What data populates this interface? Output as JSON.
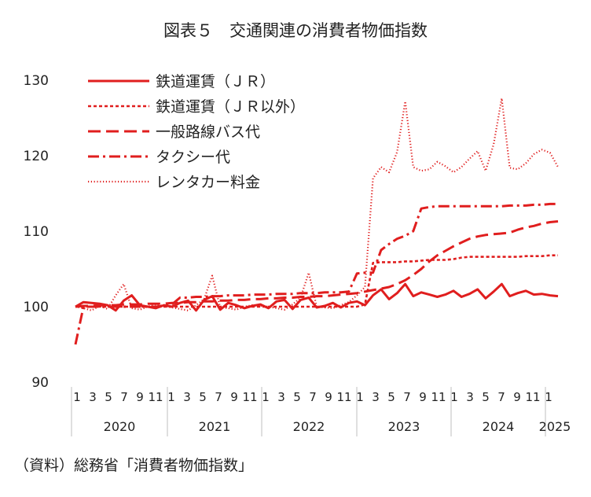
{
  "chart_data": {
    "type": "line",
    "title": "図表５　交通関連の消費者物価指数",
    "source_note": "（資料）総務省「消費者物価指数」",
    "ylim": [
      90,
      130
    ],
    "yticks": [
      "90",
      "100",
      "110",
      "120",
      "130"
    ],
    "grid": false,
    "legend_position": "top-left",
    "line_color": "#e01e1e",
    "x_month_labels": [
      "1",
      "3",
      "5",
      "7",
      "9",
      "11",
      "1",
      "3",
      "5",
      "7",
      "9",
      "11",
      "1",
      "3",
      "5",
      "7",
      "9",
      "11",
      "1",
      "3",
      "5",
      "7",
      "9",
      "11",
      "1",
      "3",
      "5",
      "7",
      "9",
      "11",
      "1"
    ],
    "x_year_labels": [
      "2020",
      "2021",
      "2022",
      "2023",
      "2024",
      "2025"
    ],
    "series": [
      {
        "name": "鉄道運賃（ＪＲ）",
        "style": "solid",
        "values": [
          100.0,
          100.6,
          100.5,
          100.4,
          100.2,
          99.5,
          100.8,
          101.5,
          100.2,
          100.0,
          99.8,
          100.2,
          100.0,
          100.5,
          100.8,
          99.5,
          100.9,
          101.4,
          99.6,
          100.5,
          100.2,
          99.8,
          100.1,
          100.3,
          99.8,
          100.7,
          100.9,
          99.7,
          100.9,
          101.2,
          99.9,
          100.1,
          100.5,
          99.9,
          100.5,
          100.7,
          100.2,
          101.5,
          102.3,
          101.0,
          101.8,
          103.0,
          101.4,
          101.9,
          101.6,
          101.3,
          101.6,
          102.1,
          101.3,
          101.7,
          102.3,
          101.1,
          102.0,
          103.0,
          101.4,
          101.8,
          102.1,
          101.6,
          101.7,
          101.5,
          101.4
        ]
      },
      {
        "name": "鉄道運賃（ＪＲ以外）",
        "style": "dashed",
        "values": [
          100.0,
          100.0,
          100.0,
          100.0,
          100.0,
          100.0,
          100.0,
          100.0,
          100.0,
          100.0,
          100.0,
          100.0,
          100.0,
          100.0,
          100.0,
          100.0,
          100.0,
          100.0,
          100.0,
          100.0,
          100.0,
          100.0,
          100.0,
          100.0,
          100.0,
          100.0,
          100.0,
          100.0,
          100.0,
          100.0,
          100.0,
          100.0,
          100.0,
          100.0,
          100.0,
          100.0,
          100.3,
          105.8,
          105.9,
          105.9,
          105.9,
          106.0,
          106.0,
          106.1,
          106.2,
          106.2,
          106.2,
          106.3,
          106.5,
          106.6,
          106.6,
          106.6,
          106.6,
          106.6,
          106.6,
          106.6,
          106.7,
          106.7,
          106.7,
          106.8,
          106.8
        ]
      },
      {
        "name": "一般路線バス代",
        "style": "longdash",
        "values": [
          100.0,
          100.1,
          100.1,
          100.2,
          100.2,
          100.2,
          100.3,
          100.3,
          100.3,
          100.4,
          100.4,
          100.4,
          100.5,
          100.5,
          100.6,
          100.6,
          100.7,
          100.7,
          100.8,
          100.8,
          100.9,
          100.9,
          101.0,
          101.0,
          101.1,
          101.1,
          101.2,
          101.2,
          101.3,
          101.3,
          101.4,
          101.4,
          101.5,
          101.6,
          101.7,
          101.8,
          102.0,
          102.2,
          102.4,
          102.6,
          103.0,
          103.5,
          104.2,
          105.0,
          106.0,
          106.8,
          107.4,
          108.0,
          108.5,
          109.0,
          109.3,
          109.5,
          109.6,
          109.7,
          109.8,
          110.2,
          110.5,
          110.7,
          111.0,
          111.2,
          111.3
        ]
      },
      {
        "name": "タクシー代",
        "style": "dashdot",
        "values": [
          95.0,
          100.0,
          100.0,
          100.0,
          100.0,
          100.0,
          100.0,
          100.0,
          100.0,
          100.0,
          100.0,
          100.1,
          100.3,
          101.2,
          101.2,
          101.3,
          101.3,
          101.4,
          101.4,
          101.5,
          101.5,
          101.5,
          101.6,
          101.6,
          101.6,
          101.7,
          101.7,
          101.7,
          101.8,
          101.8,
          101.8,
          101.9,
          101.9,
          101.9,
          102.0,
          104.4,
          104.5,
          104.5,
          107.5,
          108.3,
          109.0,
          109.4,
          110.0,
          113.0,
          113.2,
          113.3,
          113.3,
          113.3,
          113.3,
          113.3,
          113.3,
          113.3,
          113.3,
          113.3,
          113.4,
          113.4,
          113.4,
          113.5,
          113.5,
          113.6,
          113.6
        ]
      },
      {
        "name": "レンタカー料金",
        "style": "dotted",
        "values": [
          100.0,
          99.8,
          99.5,
          100.1,
          99.7,
          101.5,
          103.0,
          99.8,
          99.6,
          100.0,
          100.3,
          100.1,
          99.9,
          99.7,
          99.5,
          100.2,
          101.0,
          104.1,
          99.9,
          99.8,
          99.6,
          100.0,
          100.2,
          100.1,
          100.0,
          99.8,
          99.6,
          100.3,
          101.2,
          104.5,
          100.0,
          99.9,
          99.8,
          100.2,
          100.6,
          101.5,
          102.6,
          117.0,
          118.5,
          117.8,
          120.5,
          127.2,
          118.5,
          118.0,
          118.2,
          119.2,
          118.6,
          117.8,
          118.5,
          119.6,
          120.6,
          118.0,
          121.5,
          127.6,
          118.4,
          118.2,
          119.0,
          120.2,
          120.8,
          120.4,
          118.5
        ]
      }
    ]
  }
}
